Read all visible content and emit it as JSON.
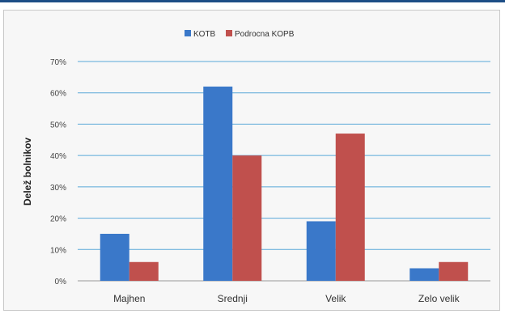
{
  "chart_data": {
    "type": "bar",
    "categories": [
      "Majhen",
      "Srednji",
      "Velik",
      "Zelo velik"
    ],
    "series": [
      {
        "name": "KOTB",
        "values": [
          15,
          62,
          19,
          4
        ],
        "color": "#3a78c9"
      },
      {
        "name": "Podrocna KOPB",
        "values": [
          6,
          40,
          47,
          6
        ],
        "color": "#c0504d"
      }
    ],
    "ylabel": "Delež bolnikov",
    "xlabel": "",
    "ylim": [
      0,
      70
    ],
    "yticks": [
      0,
      10,
      20,
      30,
      40,
      50,
      60,
      70
    ],
    "ytick_suffix": "%",
    "grid": true,
    "gridline_color": "#5aa9d9",
    "legend_position": "top-center"
  }
}
